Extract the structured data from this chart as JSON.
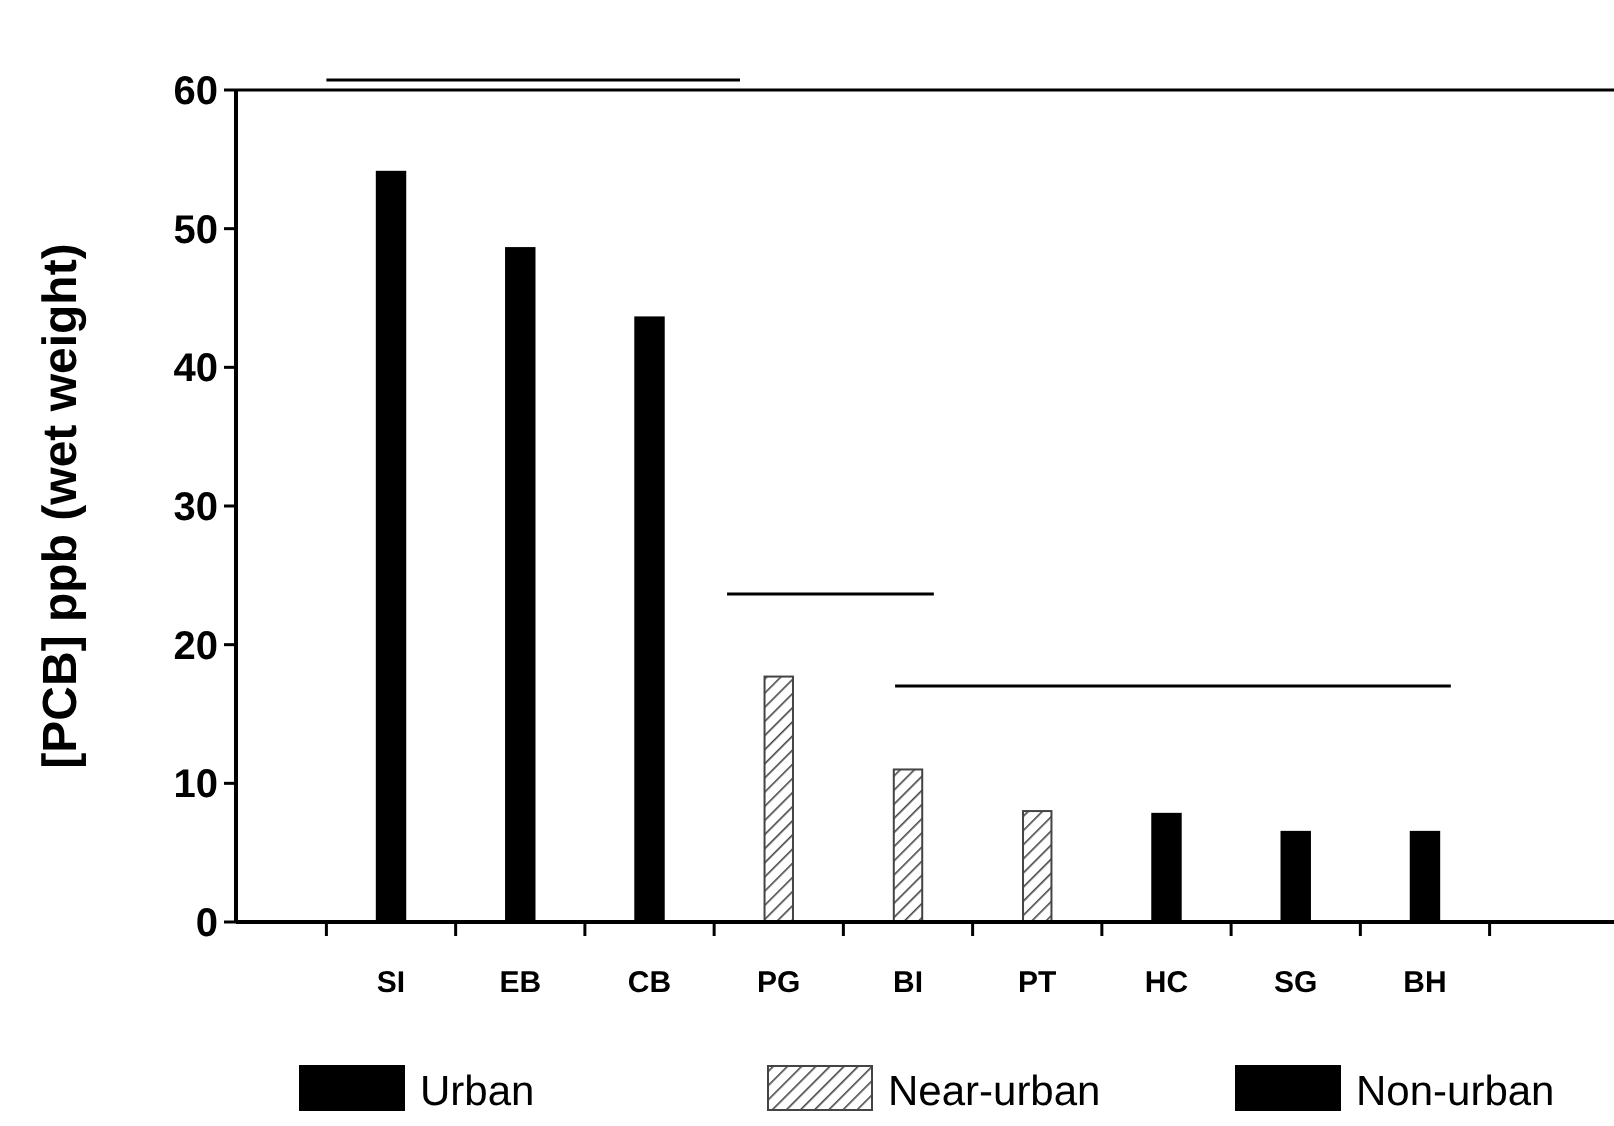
{
  "chart_data": {
    "type": "bar",
    "ylabel": "[PCB] ppb (wet weight)",
    "categories": [
      "SI",
      "EB",
      "CB",
      "PG",
      "BI",
      "PT",
      "HC",
      "SG",
      "BH"
    ],
    "series": [
      {
        "name": "Urban",
        "color": "#000000",
        "values": [
          54.1,
          48.6,
          43.6,
          null,
          null,
          null,
          null,
          null,
          null
        ]
      },
      {
        "name": "Near-urban",
        "color": "#444444",
        "values": [
          null,
          null,
          null,
          17.7,
          11.0,
          8.0,
          null,
          null,
          null
        ]
      },
      {
        "name": "Non-urban",
        "color": "#000000",
        "values": [
          null,
          null,
          null,
          null,
          null,
          null,
          7.8,
          6.5,
          6.5
        ]
      }
    ],
    "ylim": [
      0,
      60
    ],
    "yticks": [
      0,
      10,
      20,
      30,
      40,
      50,
      60
    ],
    "grid": false,
    "legend": "bottom"
  }
}
